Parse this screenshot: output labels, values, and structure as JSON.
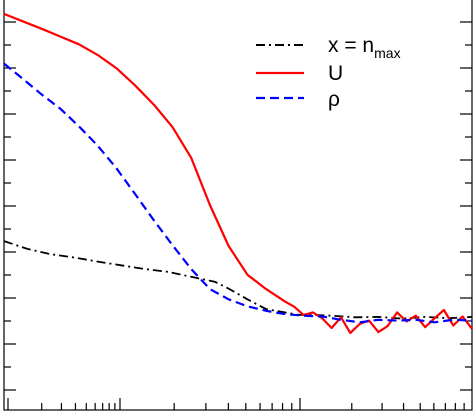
{
  "chart_data": {
    "type": "line",
    "title": "",
    "xlabel": "",
    "ylabel": "",
    "xlim": [
      0,
      1
    ],
    "ylim": [
      0,
      1
    ],
    "x_scale": "log",
    "grid": false,
    "legend_position": "top-right",
    "series": [
      {
        "name_main": "x = n",
        "name_sub": "max",
        "color": "#000000",
        "dash": "dashdot",
        "points": [
          [
            0.0,
            0.412
          ],
          [
            0.05,
            0.393
          ],
          [
            0.1,
            0.38
          ],
          [
            0.15,
            0.372
          ],
          [
            0.2,
            0.362
          ],
          [
            0.25,
            0.353
          ],
          [
            0.3,
            0.344
          ],
          [
            0.35,
            0.337
          ],
          [
            0.4,
            0.325
          ],
          [
            0.45,
            0.313
          ],
          [
            0.48,
            0.296
          ],
          [
            0.52,
            0.27
          ],
          [
            0.56,
            0.246
          ],
          [
            0.6,
            0.238
          ],
          [
            0.63,
            0.232
          ],
          [
            0.66,
            0.232
          ],
          [
            0.7,
            0.23
          ],
          [
            0.75,
            0.226
          ],
          [
            0.8,
            0.227
          ],
          [
            0.85,
            0.223
          ],
          [
            0.9,
            0.227
          ],
          [
            0.95,
            0.224
          ],
          [
            1.0,
            0.227
          ]
        ]
      },
      {
        "name": "U",
        "color": "#ff0000",
        "dash": "solid",
        "points": [
          [
            0.0,
            0.966
          ],
          [
            0.04,
            0.948
          ],
          [
            0.08,
            0.93
          ],
          [
            0.12,
            0.911
          ],
          [
            0.16,
            0.892
          ],
          [
            0.2,
            0.866
          ],
          [
            0.24,
            0.834
          ],
          [
            0.28,
            0.792
          ],
          [
            0.32,
            0.745
          ],
          [
            0.36,
            0.69
          ],
          [
            0.4,
            0.615
          ],
          [
            0.44,
            0.5
          ],
          [
            0.48,
            0.4
          ],
          [
            0.52,
            0.33
          ],
          [
            0.56,
            0.295
          ],
          [
            0.58,
            0.28
          ],
          [
            0.6,
            0.265
          ],
          [
            0.62,
            0.252
          ],
          [
            0.64,
            0.232
          ],
          [
            0.66,
            0.238
          ],
          [
            0.68,
            0.224
          ],
          [
            0.7,
            0.2
          ],
          [
            0.72,
            0.226
          ],
          [
            0.74,
            0.188
          ],
          [
            0.76,
            0.21
          ],
          [
            0.78,
            0.218
          ],
          [
            0.8,
            0.19
          ],
          [
            0.82,
            0.205
          ],
          [
            0.84,
            0.238
          ],
          [
            0.86,
            0.216
          ],
          [
            0.88,
            0.23
          ],
          [
            0.9,
            0.202
          ],
          [
            0.92,
            0.224
          ],
          [
            0.94,
            0.244
          ],
          [
            0.96,
            0.206
          ],
          [
            0.98,
            0.228
          ],
          [
            1.0,
            0.198
          ]
        ]
      },
      {
        "name": "ρ",
        "color": "#0000ff",
        "dash": "dashed",
        "points": [
          [
            0.0,
            0.845
          ],
          [
            0.04,
            0.808
          ],
          [
            0.08,
            0.77
          ],
          [
            0.12,
            0.735
          ],
          [
            0.16,
            0.692
          ],
          [
            0.2,
            0.645
          ],
          [
            0.24,
            0.59
          ],
          [
            0.28,
            0.527
          ],
          [
            0.32,
            0.463
          ],
          [
            0.36,
            0.402
          ],
          [
            0.4,
            0.344
          ],
          [
            0.44,
            0.295
          ],
          [
            0.48,
            0.27
          ],
          [
            0.52,
            0.253
          ],
          [
            0.56,
            0.242
          ],
          [
            0.6,
            0.234
          ],
          [
            0.64,
            0.23
          ],
          [
            0.68,
            0.228
          ],
          [
            0.72,
            0.22
          ],
          [
            0.76,
            0.214
          ],
          [
            0.8,
            0.22
          ],
          [
            0.84,
            0.218
          ],
          [
            0.88,
            0.22
          ],
          [
            0.92,
            0.214
          ],
          [
            0.96,
            0.22
          ],
          [
            1.0,
            0.218
          ]
        ]
      }
    ]
  }
}
